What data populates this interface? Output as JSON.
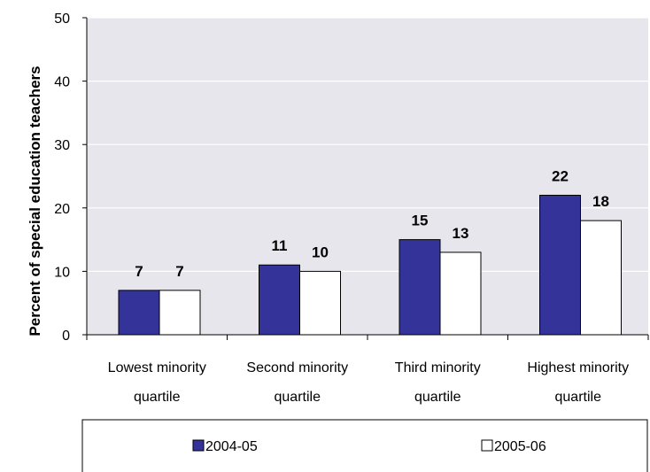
{
  "chart_data": {
    "type": "bar",
    "ylabel": "Percent of special education teachers",
    "xlabel": "",
    "ylim": [
      0,
      50
    ],
    "yticks": [
      0,
      10,
      20,
      30,
      40,
      50
    ],
    "grid": true,
    "legend_position": "bottom",
    "categories": [
      [
        "Lowest minority",
        "quartile"
      ],
      [
        "Second minority",
        "quartile"
      ],
      [
        "Third minority",
        "quartile"
      ],
      [
        "Highest minority",
        "quartile"
      ]
    ],
    "series": [
      {
        "name": "2004-05",
        "values": [
          7,
          11,
          15,
          22
        ],
        "labels": [
          "7",
          "11",
          "15",
          "22"
        ],
        "color": "#333399"
      },
      {
        "name": "2005-06",
        "values": [
          7,
          10,
          13,
          18
        ],
        "labels": [
          "7",
          "10",
          "13",
          "18"
        ],
        "color": "#ffffff"
      }
    ],
    "plot_background": "#e8e6ed"
  }
}
